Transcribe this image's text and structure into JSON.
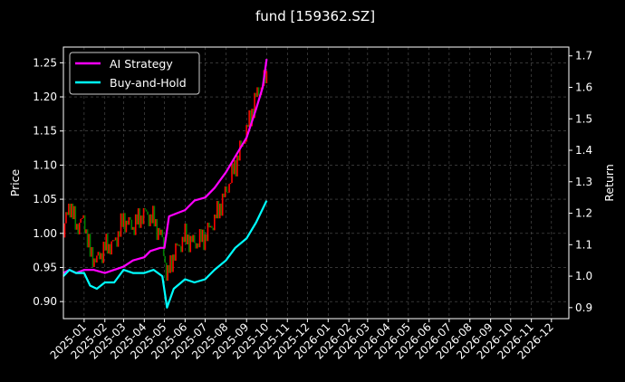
{
  "chart_data": {
    "type": "line",
    "title": "fund [159362.SZ]",
    "left_axis": {
      "label": "Price",
      "ylim": [
        0.875,
        1.273
      ],
      "ticks": [
        0.9,
        0.95,
        1.0,
        1.05,
        1.1,
        1.15,
        1.2,
        1.25
      ],
      "tick_labels": [
        "0.90",
        "0.95",
        "1.00",
        "1.05",
        "1.10",
        "1.15",
        "1.20",
        "1.25"
      ]
    },
    "right_axis": {
      "label": "Return",
      "ylim": [
        0.865,
        1.728
      ],
      "ticks": [
        0.9,
        1.0,
        1.1,
        1.2,
        1.3,
        1.4,
        1.5,
        1.6,
        1.7
      ],
      "tick_labels": [
        "0.9",
        "1.0",
        "1.1",
        "1.2",
        "1.3",
        "1.4",
        "1.5",
        "1.6",
        "1.7"
      ]
    },
    "x_axis": {
      "range": [
        "2024-12-01",
        "2026-12-27"
      ],
      "tick_dates": [
        "2025-01-01",
        "2025-02-01",
        "2025-03-01",
        "2025-04-01",
        "2025-05-01",
        "2025-06-01",
        "2025-07-01",
        "2025-08-01",
        "2025-09-01",
        "2025-10-01",
        "2025-11-01",
        "2025-12-01",
        "2026-01-01",
        "2026-02-01",
        "2026-03-01",
        "2026-04-01",
        "2026-05-01",
        "2026-06-01",
        "2026-07-01",
        "2026-08-01",
        "2026-09-01",
        "2026-10-01",
        "2026-11-01",
        "2026-12-01"
      ],
      "tick_labels": [
        "2025-01",
        "2025-02",
        "2025-03",
        "2025-04",
        "2025-05",
        "2025-06",
        "2025-07",
        "2025-08",
        "2025-09",
        "2025-10",
        "2025-11",
        "2025-12",
        "2026-01",
        "2026-02",
        "2026-03",
        "2026-04",
        "2026-05",
        "2026-06",
        "2026-07",
        "2026-08",
        "2026-09",
        "2026-10",
        "2026-11",
        "2026-12"
      ]
    },
    "grid": true,
    "legend": {
      "placement": "top-left",
      "entries": [
        "AI Strategy",
        "Buy-and-Hold"
      ]
    },
    "series": [
      {
        "name": "AI Strategy",
        "axis": "right",
        "color": "#ff00ff",
        "points": [
          [
            "2024-12-01",
            1.01
          ],
          [
            "2024-12-10",
            1.02
          ],
          [
            "2024-12-20",
            1.01
          ],
          [
            "2025-01-01",
            1.02
          ],
          [
            "2025-01-15",
            1.02
          ],
          [
            "2025-02-01",
            1.01
          ],
          [
            "2025-02-15",
            1.02
          ],
          [
            "2025-03-01",
            1.03
          ],
          [
            "2025-03-15",
            1.05
          ],
          [
            "2025-04-01",
            1.06
          ],
          [
            "2025-04-10",
            1.08
          ],
          [
            "2025-04-25",
            1.09
          ],
          [
            "2025-05-01",
            1.09
          ],
          [
            "2025-05-08",
            1.19
          ],
          [
            "2025-05-20",
            1.2
          ],
          [
            "2025-06-01",
            1.21
          ],
          [
            "2025-06-15",
            1.24
          ],
          [
            "2025-07-01",
            1.25
          ],
          [
            "2025-07-15",
            1.28
          ],
          [
            "2025-08-01",
            1.33
          ],
          [
            "2025-08-15",
            1.38
          ],
          [
            "2025-09-01",
            1.44
          ],
          [
            "2025-09-15",
            1.53
          ],
          [
            "2025-09-25",
            1.6
          ],
          [
            "2025-10-01",
            1.69
          ]
        ]
      },
      {
        "name": "Buy-and-Hold",
        "axis": "right",
        "color": "#00ffff",
        "points": [
          [
            "2024-12-01",
            1.0
          ],
          [
            "2024-12-10",
            1.02
          ],
          [
            "2024-12-20",
            1.01
          ],
          [
            "2025-01-01",
            1.01
          ],
          [
            "2025-01-10",
            0.97
          ],
          [
            "2025-01-20",
            0.96
          ],
          [
            "2025-02-01",
            0.98
          ],
          [
            "2025-02-15",
            0.98
          ],
          [
            "2025-03-01",
            1.02
          ],
          [
            "2025-03-15",
            1.01
          ],
          [
            "2025-04-01",
            1.01
          ],
          [
            "2025-04-15",
            1.02
          ],
          [
            "2025-04-28",
            1.0
          ],
          [
            "2025-05-05",
            0.9
          ],
          [
            "2025-05-15",
            0.96
          ],
          [
            "2025-06-01",
            0.99
          ],
          [
            "2025-06-15",
            0.98
          ],
          [
            "2025-07-01",
            0.99
          ],
          [
            "2025-07-15",
            1.02
          ],
          [
            "2025-08-01",
            1.05
          ],
          [
            "2025-08-15",
            1.09
          ],
          [
            "2025-09-01",
            1.12
          ],
          [
            "2025-09-15",
            1.17
          ],
          [
            "2025-10-01",
            1.24
          ]
        ]
      }
    ],
    "price_bars": {
      "axis": "left",
      "up_color": "#ff0000",
      "down_color": "#008000",
      "points": [
        [
          "2024-12-01",
          1.0
        ],
        [
          "2024-12-10",
          1.045
        ],
        [
          "2024-12-20",
          1.01
        ],
        [
          "2025-01-01",
          1.02
        ],
        [
          "2025-01-10",
          0.97
        ],
        [
          "2025-01-20",
          0.96
        ],
        [
          "2025-02-01",
          0.98
        ],
        [
          "2025-02-15",
          0.985
        ],
        [
          "2025-03-01",
          1.02
        ],
        [
          "2025-03-15",
          1.01
        ],
        [
          "2025-04-01",
          1.03
        ],
        [
          "2025-04-15",
          1.02
        ],
        [
          "2025-04-28",
          0.99
        ],
        [
          "2025-05-05",
          0.935
        ],
        [
          "2025-05-15",
          0.97
        ],
        [
          "2025-06-01",
          0.995
        ],
        [
          "2025-06-15",
          0.985
        ],
        [
          "2025-07-01",
          0.995
        ],
        [
          "2025-07-15",
          1.02
        ],
        [
          "2025-08-01",
          1.06
        ],
        [
          "2025-08-15",
          1.1
        ],
        [
          "2025-09-01",
          1.15
        ],
        [
          "2025-09-15",
          1.2
        ],
        [
          "2025-10-01",
          1.23
        ]
      ]
    }
  }
}
